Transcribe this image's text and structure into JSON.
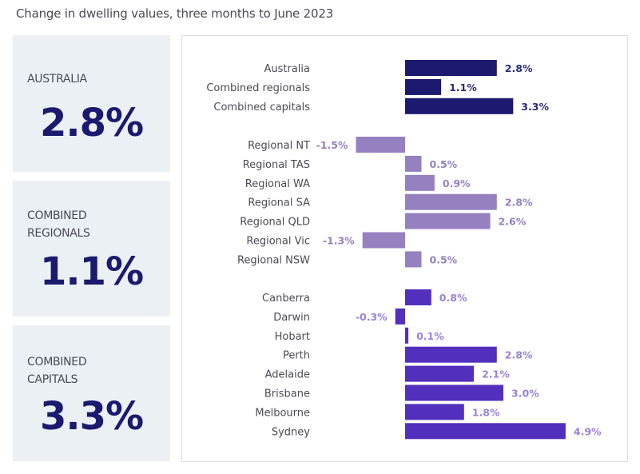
{
  "title": "Change in dwelling values, three months to June 2023",
  "cards": [
    {
      "label_lines": [
        "AUSTRALIA"
      ],
      "value": "2.8%"
    },
    {
      "label_lines": [
        "COMBINED",
        "REGIONALS"
      ],
      "value": "1.1%"
    },
    {
      "label_lines": [
        "COMBINED",
        "CAPITALS"
      ],
      "value": "3.3%"
    }
  ],
  "colors": {
    "aggregate_bar": "#1b1a6e",
    "aggregate_label": "#2a2a80",
    "regional_bar": "#9580c0",
    "regional_label": "#9580c0",
    "capital_bar": "#5230bd",
    "capital_label": "#9a82d8",
    "category_text": "#4a4a55"
  },
  "chart_data": {
    "type": "bar",
    "orientation": "horizontal",
    "title": "Change in dwelling values, three months to June 2023",
    "xlabel": "",
    "ylabel": "",
    "xlim": [
      -1.8,
      5.3
    ],
    "grid": false,
    "unit": "%",
    "groups": [
      {
        "name": "aggregates",
        "categories": [
          "Australia",
          "Combined regionals",
          "Combined capitals"
        ],
        "values": [
          2.8,
          1.1,
          3.3
        ],
        "labels": [
          "2.8%",
          "1.1%",
          "3.3%"
        ]
      },
      {
        "name": "regionals",
        "categories": [
          "Regional NT",
          "Regional TAS",
          "Regional WA",
          "Regional SA",
          "Regional QLD",
          "Regional Vic",
          "Regional NSW"
        ],
        "values": [
          -1.5,
          0.5,
          0.9,
          2.8,
          2.6,
          -1.3,
          0.5
        ],
        "labels": [
          "-1.5%",
          "0.5%",
          "0.9%",
          "2.8%",
          "2.6%",
          "-1.3%",
          "0.5%"
        ]
      },
      {
        "name": "capitals",
        "categories": [
          "Canberra",
          "Darwin",
          "Hobart",
          "Perth",
          "Adelaide",
          "Brisbane",
          "Melbourne",
          "Sydney"
        ],
        "values": [
          0.8,
          -0.3,
          0.1,
          2.8,
          2.1,
          3.0,
          1.8,
          4.9
        ],
        "labels": [
          "0.8%",
          "-0.3%",
          "0.1%",
          "2.8%",
          "2.1%",
          "3.0%",
          "1.8%",
          "4.9%"
        ]
      }
    ]
  }
}
